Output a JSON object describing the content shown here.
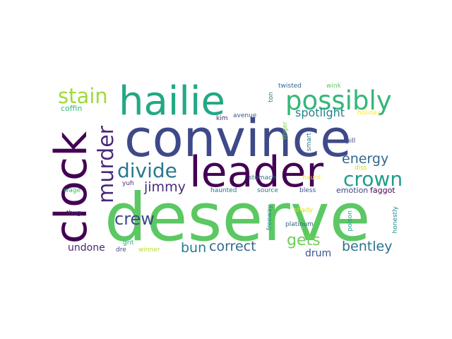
{
  "words": [
    {
      "text": "deserve",
      "color": "#5cc863"
    },
    {
      "text": "convince",
      "color": "#3e4989"
    },
    {
      "text": "leader",
      "color": "#440154"
    },
    {
      "text": "clock",
      "color": "#440154"
    },
    {
      "text": "hailie",
      "color": "#22a884"
    },
    {
      "text": "possibly",
      "color": "#35b779"
    },
    {
      "text": "stain",
      "color": "#a0da39"
    },
    {
      "text": "murder",
      "color": "#482878"
    },
    {
      "text": "divide",
      "color": "#2a788e"
    },
    {
      "text": "crown",
      "color": "#1f9e89"
    },
    {
      "text": "energy",
      "color": "#31688e"
    },
    {
      "text": "spotlight",
      "color": "#26828e"
    },
    {
      "text": "jimmy",
      "color": "#472c7a"
    },
    {
      "text": "crew",
      "color": "#3e4989"
    },
    {
      "text": "gets",
      "color": "#6ece58"
    },
    {
      "text": "bun",
      "color": "#287d8e"
    },
    {
      "text": "correct",
      "color": "#31688e"
    },
    {
      "text": "bentley",
      "color": "#2c728e"
    },
    {
      "text": "undone",
      "color": "#482878"
    },
    {
      "text": "drum",
      "color": "#3b528b"
    },
    {
      "text": "coffin",
      "color": "#35b779"
    },
    {
      "text": "emotion",
      "color": "#414487"
    },
    {
      "text": "faggot",
      "color": "#440154"
    },
    {
      "text": "twisted",
      "color": "#31688e"
    },
    {
      "text": "wink",
      "color": "#5ec962"
    },
    {
      "text": "ton",
      "color": "#2c728e"
    },
    {
      "text": "kim",
      "color": "#482878"
    },
    {
      "text": "avenue",
      "color": "#3b528b"
    },
    {
      "text": "holiday",
      "color": "#fde725"
    },
    {
      "text": "linger",
      "color": "#7ad151"
    },
    {
      "text": "smart",
      "color": "#2a788e"
    },
    {
      "text": "pill",
      "color": "#3e4989"
    },
    {
      "text": "stomach",
      "color": "#2c728e"
    },
    {
      "text": "haunt",
      "color": "#fde725"
    },
    {
      "text": "diss",
      "color": "#c2df23"
    },
    {
      "text": "yuh",
      "color": "#472d7b"
    },
    {
      "text": "wage",
      "color": "#35b779"
    },
    {
      "text": "haunted",
      "color": "#2c728e"
    },
    {
      "text": "source",
      "color": "#2a788e"
    },
    {
      "text": "bless",
      "color": "#3b528b"
    },
    {
      "text": "shady",
      "color": "#d8e219"
    },
    {
      "text": "freeway",
      "color": "#21918c"
    },
    {
      "text": "honestly",
      "color": "#23888e"
    },
    {
      "text": "thug",
      "color": "#482878"
    },
    {
      "text": "platinum",
      "color": "#33638d"
    },
    {
      "text": "poison",
      "color": "#1f9e89"
    },
    {
      "text": "grit",
      "color": "#22a884"
    },
    {
      "text": "dre",
      "color": "#3e4989"
    },
    {
      "text": "winner",
      "color": "#b5de2b"
    }
  ]
}
